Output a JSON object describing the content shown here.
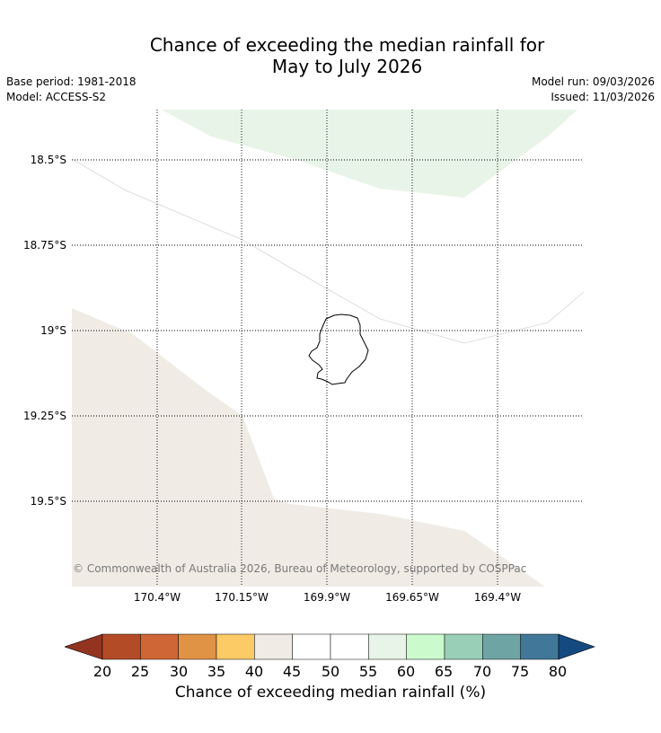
{
  "title": {
    "line1": "Chance of exceeding the median rainfall for",
    "line2": "May to July 2026"
  },
  "meta": {
    "base_period": "Base period: 1981-2018",
    "model": "Model: ACCESS-S2",
    "model_run": "Model run: 09/03/2026",
    "issued": "Issued: 11/03/2026"
  },
  "map": {
    "latitude_labels": [
      "18.5°S",
      "18.75°S",
      "19°S",
      "19.25°S",
      "19.5°S"
    ],
    "longitude_labels": [
      "170.4°W",
      "170.15°W",
      "169.9°W",
      "169.65°W",
      "169.4°W"
    ],
    "copyright": "© Commonwealth of Australia 2026, Bureau of Meteorology, supported by COSPPac",
    "region_colors": {
      "north_band": "#e8f4e8",
      "south_band": "#f0ebe5",
      "land_outline": "#000000"
    }
  },
  "colorbar": {
    "ticks": [
      "20",
      "25",
      "30",
      "35",
      "40",
      "45",
      "50",
      "55",
      "60",
      "65",
      "70",
      "75",
      "80"
    ],
    "label": "Chance of exceeding median rainfall (%)",
    "under_color": "#933421",
    "over_color": "#154a80",
    "colors": [
      "#b34b27",
      "#ce6635",
      "#e09245",
      "#fccb66",
      "#f0ebe5",
      "#ffffff",
      "#ffffff",
      "#e8f4e8",
      "#cbfacd",
      "#9acfb7",
      "#6ea4a4",
      "#417798"
    ]
  }
}
